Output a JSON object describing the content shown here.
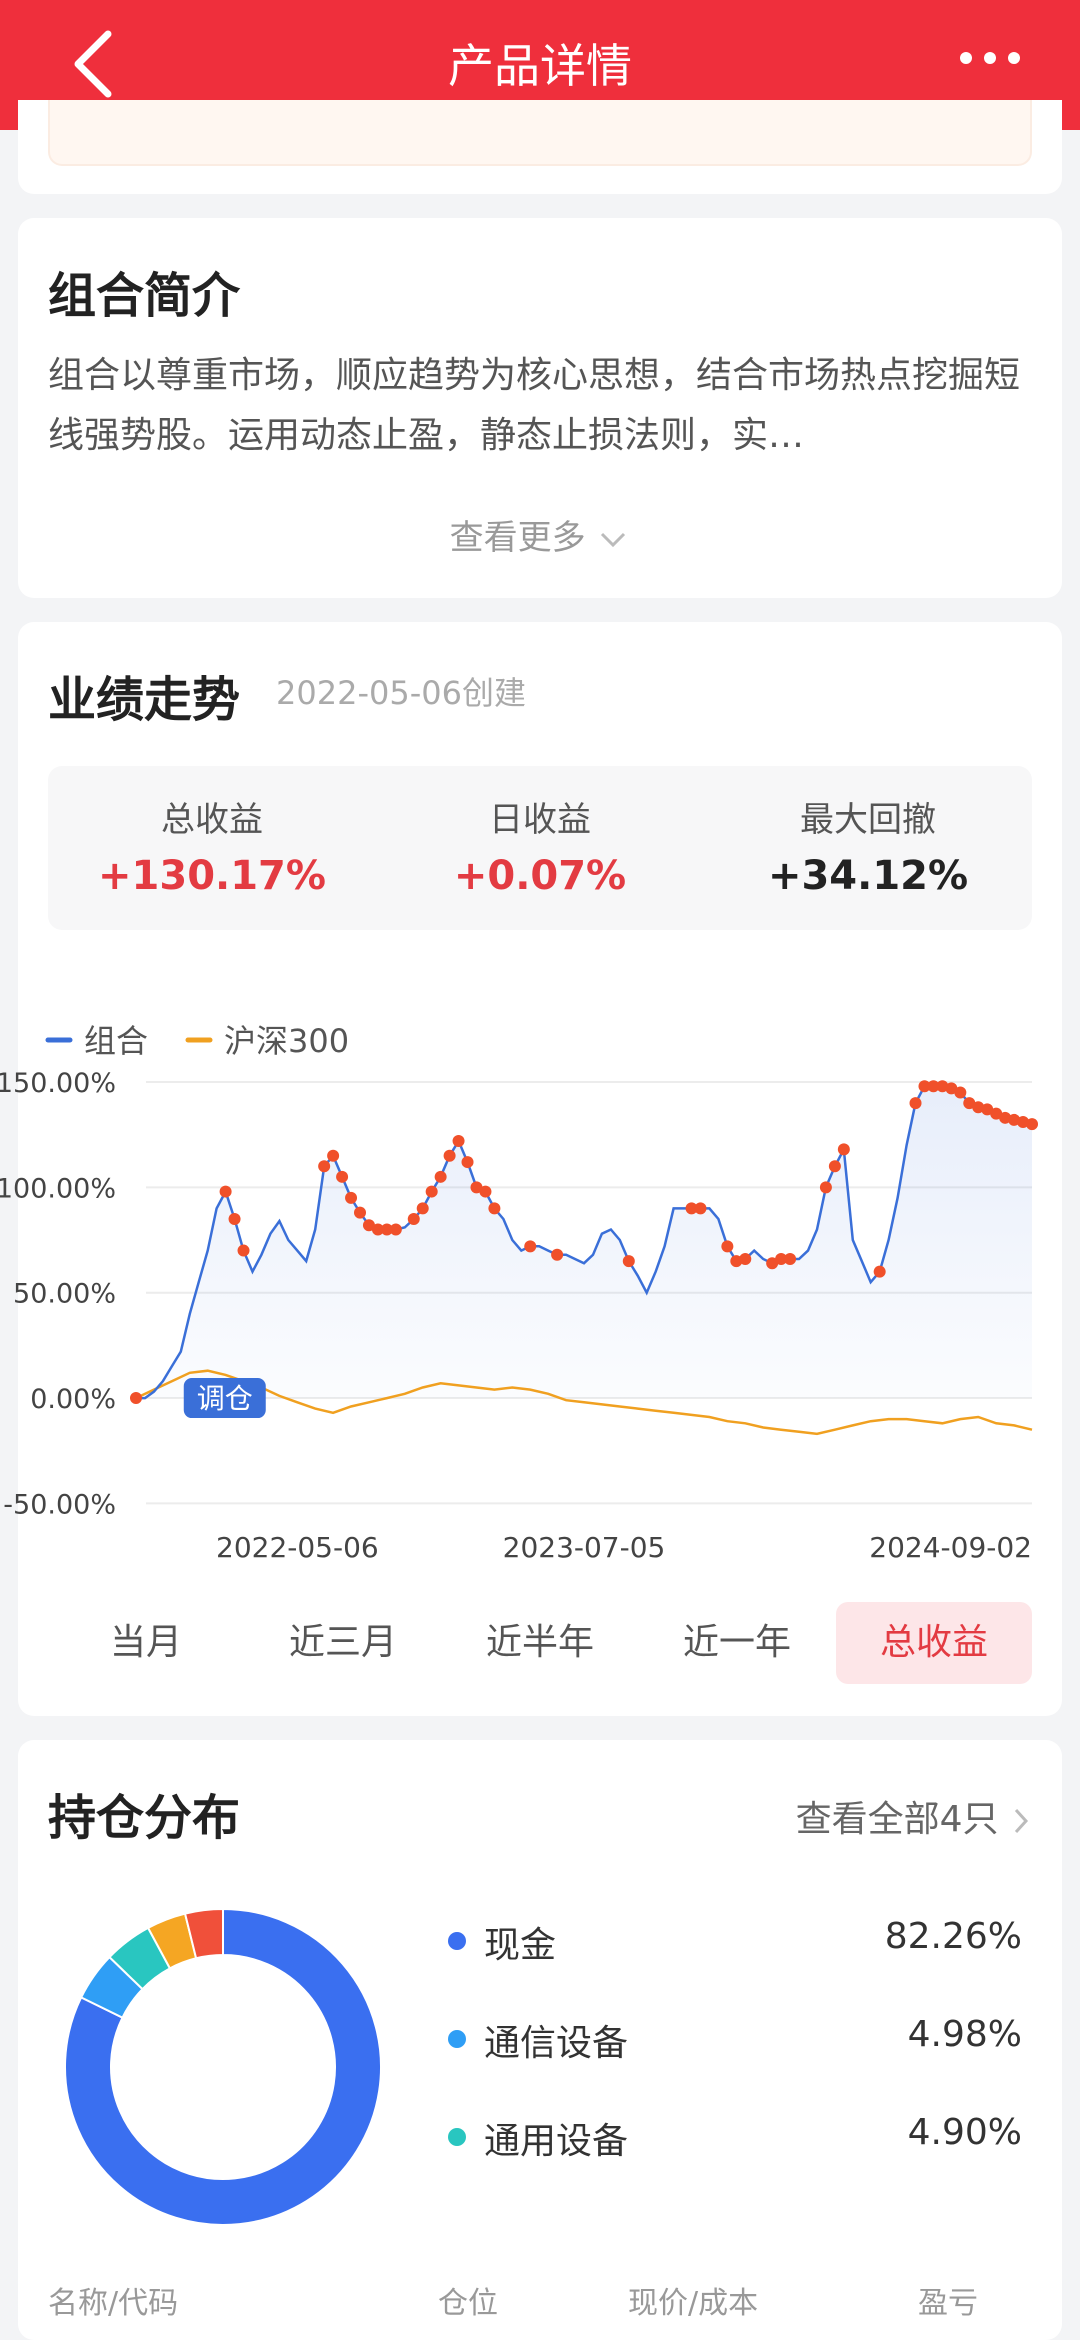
{
  "header": {
    "title": "产品详情"
  },
  "intro": {
    "title": "组合简介",
    "text": "组合以尊重市场，顺应趋势为核心思想，结合市场热点挖掘短线强势股。运用动态止盈，静态止损法则，实…",
    "see_more": "查看更多"
  },
  "performance": {
    "title": "业绩走势",
    "created": "2022-05-06创建",
    "stats": [
      {
        "label": "总收益",
        "value": "+130.17%",
        "color": "#e33b42"
      },
      {
        "label": "日收益",
        "value": "+0.07%",
        "color": "#e33b42"
      },
      {
        "label": "最大回撤",
        "value": "+34.12%",
        "color": "#222222"
      }
    ],
    "periods": [
      "当月",
      "近三月",
      "近半年",
      "近一年",
      "总收益"
    ],
    "active_period": 4
  },
  "chart_data": {
    "type": "line",
    "legend": [
      "组合",
      "沪深300"
    ],
    "y_ticks": [
      "150.00%",
      "100.00%",
      "50.00%",
      "0.00%",
      "-50.00%"
    ],
    "ylim": [
      -50,
      150
    ],
    "x_ticks": [
      "2022-05-06",
      "2023-07-05",
      "2024-09-02"
    ],
    "annotation": "调仓",
    "colors": {
      "portfolio": "#3a6fd8",
      "benchmark": "#f0a020",
      "marker": "#f0502a"
    },
    "series": [
      {
        "name": "组合",
        "x": [
          0,
          1,
          2,
          3,
          4,
          5,
          6,
          7,
          8,
          9,
          10,
          11,
          12,
          13,
          14,
          15,
          16,
          17,
          18,
          19,
          20,
          21,
          22,
          23,
          24,
          25,
          26,
          27,
          28,
          29,
          30,
          31,
          32,
          33,
          34,
          35,
          36,
          37,
          38,
          39,
          40,
          41,
          42,
          43,
          44,
          45,
          46,
          47,
          48,
          49,
          50,
          51,
          52,
          53,
          54,
          55,
          56,
          57,
          58,
          59,
          60,
          61,
          62,
          63,
          64,
          65,
          66,
          67,
          68,
          69,
          70,
          71,
          72,
          73,
          74,
          75,
          76,
          77,
          78,
          79,
          80,
          81,
          82,
          83,
          84,
          85,
          86,
          87,
          88,
          89,
          90,
          91,
          92,
          93,
          94,
          95,
          96,
          97,
          98,
          99,
          100
        ],
        "values": [
          0,
          0,
          3,
          8,
          15,
          22,
          40,
          55,
          70,
          90,
          98,
          85,
          70,
          60,
          68,
          78,
          84,
          75,
          70,
          65,
          80,
          110,
          115,
          105,
          95,
          88,
          82,
          80,
          80,
          80,
          81,
          85,
          90,
          98,
          105,
          115,
          122,
          112,
          100,
          98,
          90,
          85,
          75,
          70,
          72,
          72,
          70,
          68,
          68,
          66,
          64,
          68,
          78,
          80,
          75,
          65,
          58,
          50,
          60,
          72,
          90,
          90,
          90,
          90,
          90,
          85,
          72,
          65,
          66,
          70,
          66,
          64,
          66,
          66,
          66,
          70,
          80,
          100,
          110,
          118,
          75,
          65,
          55,
          60,
          75,
          95,
          120,
          140,
          148,
          148,
          148,
          147,
          145,
          140,
          138,
          137,
          135,
          133,
          132,
          131,
          130
        ]
      },
      {
        "name": "沪深300",
        "x": [
          0,
          2,
          4,
          6,
          8,
          10,
          12,
          14,
          16,
          18,
          20,
          22,
          24,
          26,
          28,
          30,
          32,
          34,
          36,
          38,
          40,
          42,
          44,
          46,
          48,
          50,
          52,
          54,
          56,
          58,
          60,
          62,
          64,
          66,
          68,
          70,
          72,
          74,
          76,
          78,
          80,
          82,
          84,
          86,
          88,
          90,
          92,
          94,
          96,
          98,
          100
        ],
        "values": [
          0,
          4,
          8,
          12,
          13,
          11,
          8,
          5,
          1,
          -2,
          -5,
          -7,
          -4,
          -2,
          0,
          2,
          5,
          7,
          6,
          5,
          4,
          5,
          4,
          2,
          -1,
          -2,
          -3,
          -4,
          -5,
          -6,
          -7,
          -8,
          -9,
          -11,
          -12,
          -14,
          -15,
          -16,
          -17,
          -15,
          -13,
          -11,
          -10,
          -10,
          -11,
          -12,
          -10,
          -9,
          -12,
          -13,
          -15
        ]
      }
    ],
    "marker_indices": [
      0,
      10,
      11,
      12,
      21,
      22,
      23,
      24,
      25,
      26,
      27,
      28,
      29,
      31,
      32,
      33,
      34,
      35,
      36,
      37,
      38,
      39,
      40,
      44,
      47,
      55,
      62,
      63,
      66,
      67,
      68,
      71,
      72,
      73,
      77,
      78,
      79,
      83,
      87,
      88,
      89,
      90,
      91,
      92,
      93,
      94,
      95,
      96,
      97,
      98,
      99,
      100
    ]
  },
  "holdings": {
    "title": "持仓分布",
    "view_all": "查看全部4只",
    "items": [
      {
        "name": "现金",
        "pct": "82.26%",
        "value": 82.26,
        "color": "#3a6ff0"
      },
      {
        "name": "通信设备",
        "pct": "4.98%",
        "value": 4.98,
        "color": "#2f9ef5"
      },
      {
        "name": "通用设备",
        "pct": "4.90%",
        "value": 4.9,
        "color": "#29c6c0"
      },
      {
        "name": "",
        "pct": "",
        "value": 4.0,
        "color": "#f5a623"
      },
      {
        "name": "",
        "pct": "",
        "value": 3.86,
        "color": "#f0503a"
      }
    ],
    "columns": [
      "名称/代码",
      "仓位",
      "现价/成本",
      "盈亏"
    ]
  }
}
